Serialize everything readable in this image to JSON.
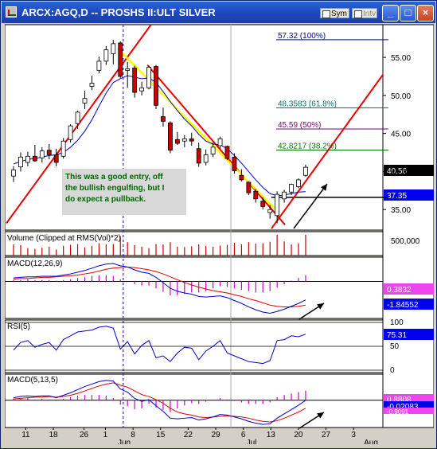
{
  "window": {
    "title": "ARCX:AGQ,D -- PROSHS II:ULT SILVER",
    "sym_label": "Sym",
    "intv_label": "Intv",
    "minimize_glyph": "_",
    "maximize_glyph": "□",
    "close_glyph": "×"
  },
  "colors": {
    "up_candle": "#ffffff",
    "down_candle": "#cc0000",
    "price_ma": "#0000cc",
    "trend_lines": "#ee0000",
    "fit_line": "#ffff00",
    "annotation_bg": "#d8d8d8",
    "annotation_text": "#006600",
    "volume_bars": "#cc0000",
    "hist_bars": "#cc00cc"
  },
  "annotation": {
    "line1": "This was a good entry, off",
    "line2": "the bullish engulfing, but I",
    "line3": "do expect a pullback."
  },
  "chart_data": [
    {
      "type": "candlestick",
      "panel": "price",
      "x_tick_labels": [
        "11",
        "18",
        "26",
        "1",
        "8",
        "15",
        "22",
        "29",
        "6",
        "13",
        "20",
        "27",
        "3"
      ],
      "month_labels": [
        "Jun",
        "Jul",
        "Aug"
      ],
      "y_ticks": [
        35,
        40,
        45,
        50,
        55
      ],
      "ylim": [
        32.3,
        59.3
      ],
      "price_label": "40.56",
      "ma_label": "37.35",
      "fib_levels": [
        {
          "label": "57.32 (100%)",
          "value": 57.32,
          "color": "#000099"
        },
        {
          "label": "48.3583 (61.8%)",
          "value": 48.3583,
          "color": "#007777"
        },
        {
          "label": "45.59 (50%)",
          "value": 45.59,
          "color": "#770077"
        },
        {
          "label": "42.8217 (38.2%)",
          "value": 42.8217,
          "color": "#007700"
        }
      ],
      "support_level": 36.6,
      "candles": [
        {
          "o": 39.4,
          "h": 40.7,
          "l": 38.6,
          "c": 40.2
        },
        {
          "o": 40.6,
          "h": 42.5,
          "l": 40.0,
          "c": 41.9
        },
        {
          "o": 41.2,
          "h": 42.6,
          "l": 40.7,
          "c": 42.0
        },
        {
          "o": 42.0,
          "h": 43.5,
          "l": 41.3,
          "c": 41.4
        },
        {
          "o": 41.8,
          "h": 43.2,
          "l": 41.2,
          "c": 42.7
        },
        {
          "o": 42.8,
          "h": 43.6,
          "l": 41.6,
          "c": 42.2
        },
        {
          "o": 42.2,
          "h": 43.0,
          "l": 40.7,
          "c": 41.2
        },
        {
          "o": 42.0,
          "h": 44.4,
          "l": 41.7,
          "c": 44.0
        },
        {
          "o": 44.2,
          "h": 46.2,
          "l": 43.8,
          "c": 46.0
        },
        {
          "o": 46.3,
          "h": 48.0,
          "l": 45.6,
          "c": 47.8
        },
        {
          "o": 49.0,
          "h": 50.6,
          "l": 48.2,
          "c": 49.6
        },
        {
          "o": 51.2,
          "h": 52.6,
          "l": 50.7,
          "c": 51.6
        },
        {
          "o": 53.3,
          "h": 55.1,
          "l": 52.9,
          "c": 54.5
        },
        {
          "o": 54.5,
          "h": 56.5,
          "l": 54.0,
          "c": 56.0
        },
        {
          "o": 55.5,
          "h": 57.3,
          "l": 54.1,
          "c": 56.8
        },
        {
          "o": 56.9,
          "h": 57.1,
          "l": 52.3,
          "c": 52.5
        },
        {
          "o": 53.3,
          "h": 54.4,
          "l": 51.0,
          "c": 53.5
        },
        {
          "o": 53.6,
          "h": 53.9,
          "l": 49.7,
          "c": 50.4
        },
        {
          "o": 50.6,
          "h": 51.8,
          "l": 50.0,
          "c": 51.0
        },
        {
          "o": 51.0,
          "h": 53.9,
          "l": 50.8,
          "c": 53.7
        },
        {
          "o": 53.8,
          "h": 54.0,
          "l": 48.2,
          "c": 48.7
        },
        {
          "o": 47.2,
          "h": 48.4,
          "l": 45.9,
          "c": 46.6
        },
        {
          "o": 46.4,
          "h": 46.6,
          "l": 42.4,
          "c": 42.8
        },
        {
          "o": 44.2,
          "h": 45.2,
          "l": 43.5,
          "c": 43.7
        },
        {
          "o": 44.0,
          "h": 44.8,
          "l": 43.2,
          "c": 44.3
        },
        {
          "o": 44.3,
          "h": 45.1,
          "l": 43.4,
          "c": 44.0
        },
        {
          "o": 43.0,
          "h": 43.8,
          "l": 40.6,
          "c": 41.1
        },
        {
          "o": 41.2,
          "h": 42.9,
          "l": 40.8,
          "c": 42.2
        },
        {
          "o": 42.3,
          "h": 43.8,
          "l": 41.9,
          "c": 43.2
        },
        {
          "o": 43.4,
          "h": 44.6,
          "l": 43.0,
          "c": 44.3
        },
        {
          "o": 43.3,
          "h": 43.4,
          "l": 41.5,
          "c": 41.7
        },
        {
          "o": 41.9,
          "h": 42.4,
          "l": 39.7,
          "c": 40.1
        },
        {
          "o": 39.5,
          "h": 40.3,
          "l": 38.7,
          "c": 38.9
        },
        {
          "o": 38.6,
          "h": 38.7,
          "l": 36.9,
          "c": 37.2
        },
        {
          "o": 37.4,
          "h": 37.7,
          "l": 35.9,
          "c": 36.4
        },
        {
          "o": 36.1,
          "h": 36.6,
          "l": 35.0,
          "c": 35.4
        },
        {
          "o": 34.6,
          "h": 35.6,
          "l": 33.8,
          "c": 35.0
        },
        {
          "o": 34.2,
          "h": 37.4,
          "l": 33.2,
          "c": 37.0
        },
        {
          "o": 36.4,
          "h": 37.6,
          "l": 35.9,
          "c": 37.3
        },
        {
          "o": 37.3,
          "h": 38.4,
          "l": 36.9,
          "c": 38.3
        },
        {
          "o": 38.0,
          "h": 39.1,
          "l": 37.8,
          "c": 38.9
        },
        {
          "o": 39.5,
          "h": 40.9,
          "l": 39.3,
          "c": 40.56
        }
      ],
      "moving_average": [
        41.0,
        41.3,
        41.6,
        41.7,
        41.9,
        42.1,
        42.2,
        42.5,
        43.2,
        44.1,
        45.3,
        46.8,
        48.6,
        50.3,
        51.7,
        52.2,
        52.6,
        52.4,
        52.2,
        52.3,
        51.7,
        50.5,
        49.2,
        48.0,
        46.9,
        46.0,
        44.9,
        44.0,
        43.6,
        43.5,
        43.0,
        42.1,
        41.1,
        40.0,
        38.9,
        37.9,
        37.1,
        36.8,
        36.9,
        37.1,
        37.3,
        37.35
      ],
      "trend_lines": [
        {
          "from": {
            "i": -1,
            "v": 33.2
          },
          "to": {
            "i": 19.3,
            "v": 59.3
          }
        },
        {
          "from": {
            "i": 18.8,
            "v": 54.0
          },
          "to": {
            "i": 38.1,
            "v": 33.0
          }
        },
        {
          "from": {
            "i": 36.2,
            "v": 32.5
          },
          "to": {
            "i": 55,
            "v": 56.8
          }
        },
        {
          "from": {
            "i": 14.6,
            "v": 56.2
          },
          "to": {
            "i": 36.6,
            "v": 35.2
          }
        }
      ]
    },
    {
      "type": "bar",
      "panel": "volume",
      "label": "Volume (Clipped at RMS(Vol)*2)",
      "y_tick": "500,000",
      "values": [
        300000,
        280000,
        200000,
        180000,
        210000,
        240000,
        160000,
        260000,
        290000,
        310000,
        220000,
        260000,
        330000,
        300000,
        310000,
        520000,
        360000,
        280000,
        240000,
        200000,
        310000,
        300000,
        360000,
        240000,
        230000,
        250000,
        300000,
        260000,
        240000,
        270000,
        290000,
        340000,
        300000,
        360000,
        320000,
        330000,
        370000,
        560000,
        380000,
        300000,
        330000,
        560000
      ]
    },
    {
      "type": "line",
      "panel": "macd",
      "label": "MACD(12,26,9)",
      "value_labels": [
        "0.3832",
        "-1.84552"
      ],
      "ylim": [
        -6.4,
        4.2
      ],
      "macd": [
        0.6,
        0.7,
        0.8,
        0.8,
        0.9,
        0.9,
        0.9,
        1.1,
        1.3,
        1.6,
        1.9,
        2.3,
        2.7,
        3.0,
        3.1,
        2.7,
        2.5,
        2.0,
        1.6,
        1.4,
        0.7,
        -0.2,
        -1.2,
        -1.7,
        -2.0,
        -2.2,
        -2.6,
        -2.7,
        -2.6,
        -2.5,
        -2.8,
        -3.3,
        -3.8,
        -4.4,
        -4.9,
        -5.3,
        -5.5,
        -5.2,
        -4.8,
        -4.3,
        -3.8,
        -3.2
      ],
      "signal": [
        0.4,
        0.5,
        0.5,
        0.6,
        0.7,
        0.7,
        0.8,
        0.9,
        1.0,
        1.1,
        1.3,
        1.5,
        1.8,
        2.1,
        2.3,
        2.4,
        2.5,
        2.4,
        2.2,
        2.0,
        1.7,
        1.3,
        0.8,
        0.3,
        -0.2,
        -0.6,
        -1.0,
        -1.3,
        -1.6,
        -1.8,
        -2.0,
        -2.3,
        -2.6,
        -3.0,
        -3.3,
        -3.7,
        -4.1,
        -4.3,
        -4.4,
        -4.4,
        -4.3,
        -4.1
      ]
    },
    {
      "type": "line",
      "panel": "rsi",
      "label": "RSI(5)",
      "value_label": "75.31",
      "y_ticks": [
        "100",
        "50",
        "0"
      ],
      "ylim": [
        0,
        100
      ],
      "values": [
        42,
        58,
        62,
        48,
        54,
        58,
        42,
        64,
        72,
        80,
        82,
        84,
        90,
        92,
        88,
        44,
        60,
        34,
        52,
        62,
        26,
        30,
        18,
        36,
        48,
        46,
        22,
        40,
        50,
        62,
        36,
        30,
        24,
        18,
        16,
        14,
        20,
        62,
        64,
        72,
        70,
        75.31
      ]
    },
    {
      "type": "line",
      "panel": "macd2",
      "label": "MACD(5,13,5)",
      "value_labels": [
        "0.8808",
        "-0.02083",
        "-0.9091"
      ],
      "ylim": [
        -4.4,
        4.2
      ],
      "macd": [
        0.4,
        0.6,
        0.7,
        0.6,
        0.7,
        0.7,
        0.4,
        0.8,
        1.2,
        1.7,
        2.2,
        2.6,
        3.0,
        3.2,
        3.1,
        1.8,
        1.3,
        0.3,
        -0.2,
        0.1,
        -0.9,
        -1.8,
        -2.9,
        -3.0,
        -2.9,
        -2.8,
        -3.2,
        -3.0,
        -2.7,
        -2.3,
        -2.4,
        -2.7,
        -3.0,
        -3.4,
        -3.7,
        -3.9,
        -3.8,
        -2.9,
        -2.2,
        -1.5,
        -0.8,
        -0.02
      ],
      "signal": [
        0.2,
        0.3,
        0.4,
        0.5,
        0.5,
        0.6,
        0.5,
        0.6,
        0.8,
        1.1,
        1.5,
        1.9,
        2.3,
        2.6,
        2.8,
        2.4,
        2.1,
        1.5,
        0.9,
        0.6,
        0.1,
        -0.5,
        -1.3,
        -1.9,
        -2.2,
        -2.4,
        -2.7,
        -2.8,
        -2.7,
        -2.6,
        -2.5,
        -2.6,
        -2.7,
        -2.9,
        -3.2,
        -3.4,
        -3.5,
        -3.3,
        -2.9,
        -2.4,
        -1.9,
        -1.3
      ]
    }
  ]
}
